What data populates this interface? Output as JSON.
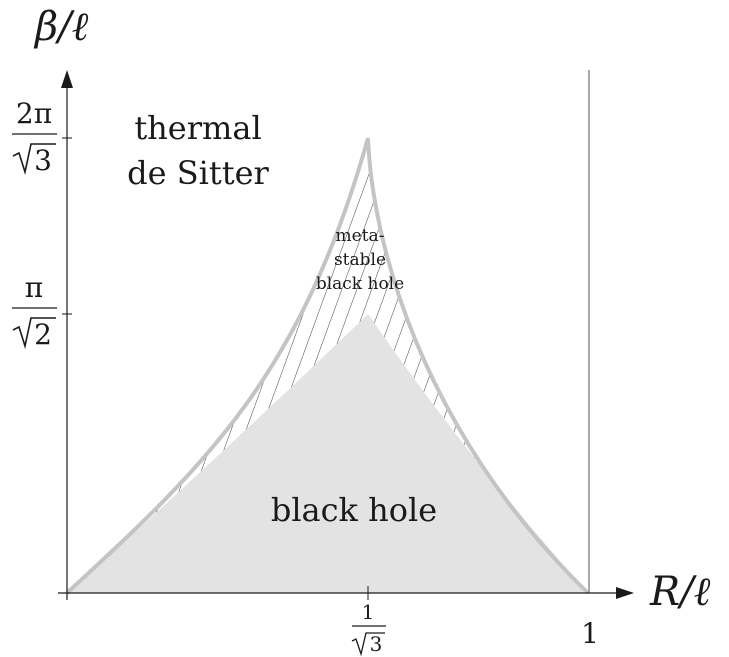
{
  "axes": {
    "x_label": "R/ℓ",
    "y_label": "β/ℓ"
  },
  "ticks": {
    "y_top": {
      "num": "2π",
      "den": "3"
    },
    "y_mid": {
      "num": "π",
      "den": "2"
    },
    "x_mid": {
      "num": "1",
      "den": "3"
    },
    "x_end": "1"
  },
  "regions": {
    "thermal_line1": "thermal",
    "thermal_line2": "de Sitter",
    "meta_line1": "meta-",
    "meta_line2": "stable",
    "meta_line3": "black hole",
    "black_hole": "black hole"
  },
  "colors": {
    "axis": "#1a1a1a",
    "boundary": "#c4c4c4",
    "fill": "#e3e3e3",
    "hatch": "#2a2a2a"
  }
}
